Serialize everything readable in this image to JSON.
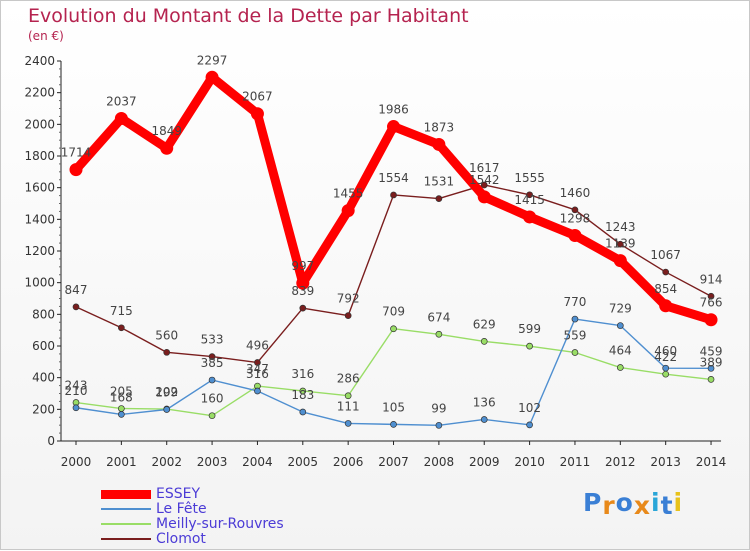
{
  "chart_data": {
    "type": "line",
    "title": "Evolution du Montant de la Dette par Habitant",
    "unit": "(en €)",
    "categories": [
      "2000",
      "2001",
      "2002",
      "2003",
      "2004",
      "2005",
      "2006",
      "2007",
      "2008",
      "2009",
      "2010",
      "2011",
      "2012",
      "2013",
      "2014"
    ],
    "ylim": [
      0,
      2400
    ],
    "yticks": [
      0,
      200,
      400,
      600,
      800,
      1000,
      1200,
      1400,
      1600,
      1800,
      2000,
      2200,
      2400
    ],
    "grid": false,
    "legend": "bottom-left",
    "series": [
      {
        "name": "ESSEY",
        "color": "#ff0000",
        "values": [
          1714,
          2037,
          1849,
          2297,
          2067,
          997,
          1455,
          1986,
          1873,
          1542,
          1415,
          1298,
          1139,
          854,
          766
        ]
      },
      {
        "name": "Le Fête",
        "color": "#4f8fd0",
        "values": [
          210,
          168,
          199,
          385,
          316,
          183,
          111,
          105,
          99,
          136,
          102,
          770,
          729,
          460,
          459
        ]
      },
      {
        "name": "Meilly-sur-Rouvres",
        "color": "#99dd66",
        "values": [
          243,
          205,
          202,
          160,
          347,
          316,
          286,
          709,
          674,
          629,
          599,
          559,
          464,
          422,
          389
        ]
      },
      {
        "name": "Clomot",
        "color": "#7a1e1e",
        "values": [
          847,
          715,
          560,
          533,
          496,
          839,
          792,
          1554,
          1531,
          1617,
          1555,
          1460,
          1243,
          1067,
          914
        ]
      }
    ]
  },
  "logo": {
    "letters": [
      "P",
      "r",
      "o",
      "x",
      "i",
      "t",
      "i"
    ],
    "colors": [
      "#3a7fd5",
      "#e8891a",
      "#3a7fd5",
      "#e8891a",
      "#2aa6d8",
      "#3a7fd5",
      "#e8c21a"
    ]
  }
}
